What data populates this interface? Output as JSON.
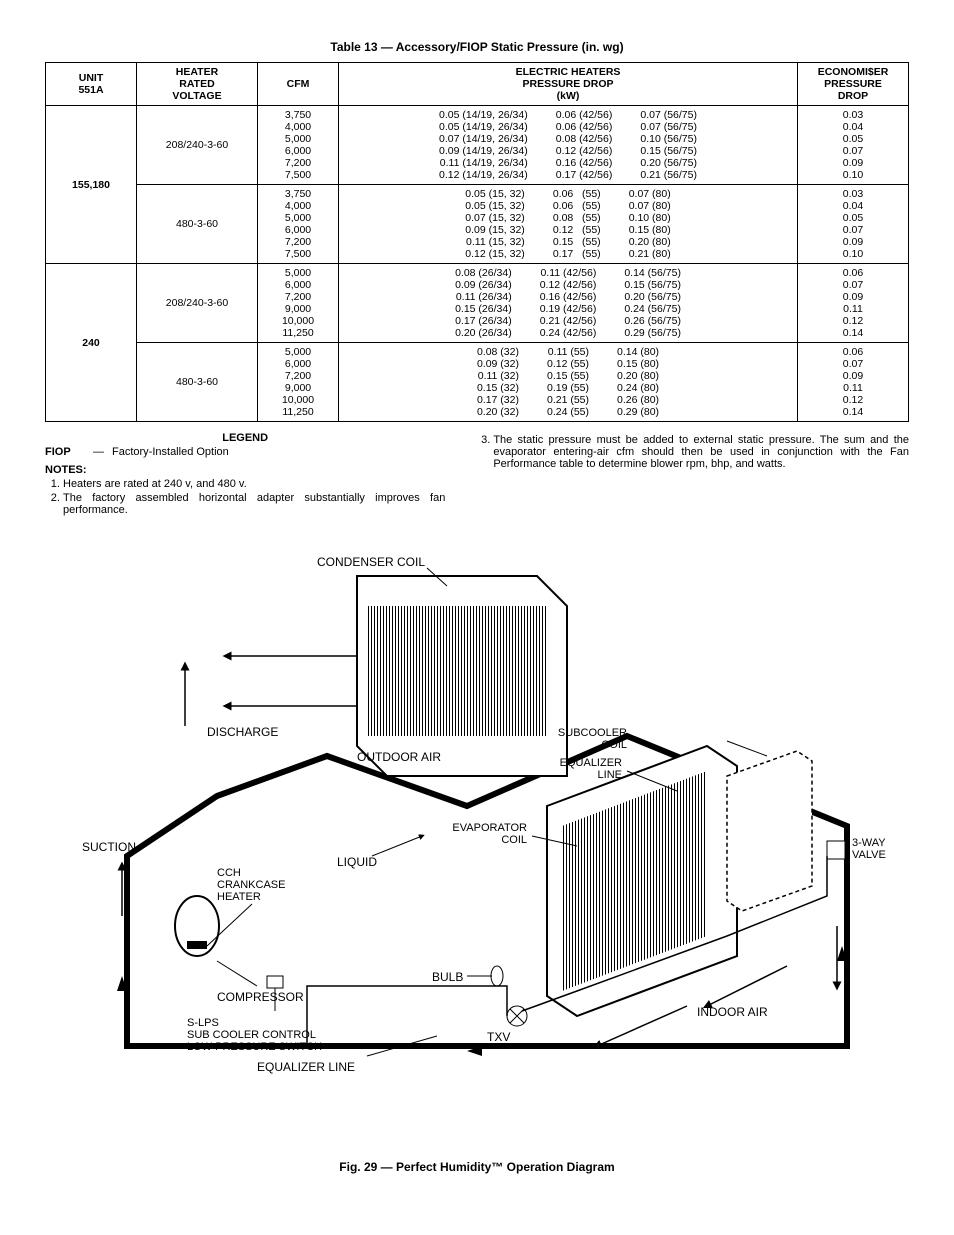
{
  "table_title": "Table 13 — Accessory/FIOP Static Pressure (in. wg)",
  "headers": {
    "unit": "UNIT\n551A",
    "voltage": "HEATER\nRATED\nVOLTAGE",
    "cfm": "CFM",
    "heaters": "ELECTRIC HEATERS\nPRESSURE DROP\n(kW)",
    "econ": "ECONOMI$ER\nPRESSURE\nDROP"
  },
  "rows": [
    {
      "unit": "155,180",
      "groups": [
        {
          "voltage": "208/240-3-60",
          "cfm": "3,750\n4,000\n5,000\n6,000\n7,200\n7,500",
          "heaters_c1": "0.05 (14/19, 26/34)\n0.05 (14/19, 26/34)\n0.07 (14/19, 26/34)\n0.09 (14/19, 26/34)\n0.11 (14/19, 26/34)\n0.12 (14/19, 26/34)",
          "heaters_c2": "0.06 (42/56)\n0.06 (42/56)\n0.08 (42/56)\n0.12 (42/56)\n0.16 (42/56)\n0.17 (42/56)",
          "heaters_c3": "0.07 (56/75)\n0.07 (56/75)\n0.10 (56/75)\n0.15 (56/75)\n0.20 (56/75)\n0.21 (56/75)",
          "econ": "0.03\n0.04\n0.05\n0.07\n0.09\n0.10"
        },
        {
          "voltage": "480-3-60",
          "cfm": "3,750\n4,000\n5,000\n6,000\n7,200\n7,500",
          "heaters_c1": "0.05 (15, 32)\n0.05 (15, 32)\n0.07 (15, 32)\n0.09 (15, 32)\n0.11 (15, 32)\n0.12 (15, 32)",
          "heaters_c2": "0.06   (55)\n0.06   (55)\n0.08   (55)\n0.12   (55)\n0.15   (55)\n0.17   (55)",
          "heaters_c3": "0.07 (80)\n0.07 (80)\n0.10 (80)\n0.15 (80)\n0.20 (80)\n0.21 (80)",
          "econ": "0.03\n0.04\n0.05\n0.07\n0.09\n0.10"
        }
      ]
    },
    {
      "unit": "240",
      "groups": [
        {
          "voltage": "208/240-3-60",
          "cfm": "5,000\n6,000\n7,200\n9,000\n10,000\n11,250",
          "heaters_c1": "0.08 (26/34)\n0.09 (26/34)\n0.11 (26/34)\n0.15 (26/34)\n0.17 (26/34)\n0.20 (26/34)",
          "heaters_c2": "0.11 (42/56)\n0.12 (42/56)\n0.16 (42/56)\n0.19 (42/56)\n0.21 (42/56)\n0.24 (42/56)",
          "heaters_c3": "0.14 (56/75)\n0.15 (56/75)\n0.20 (56/75)\n0.24 (56/75)\n0.26 (56/75)\n0.29 (56/75)",
          "econ": "0.06\n0.07\n0.09\n0.11\n0.12\n0.14"
        },
        {
          "voltage": "480-3-60",
          "cfm": "5,000\n6,000\n7,200\n9,000\n10,000\n11,250",
          "heaters_c1": "0.08 (32)\n0.09 (32)\n0.11 (32)\n0.15 (32)\n0.17 (32)\n0.20 (32)",
          "heaters_c2": "0.11 (55)\n0.12 (55)\n0.15 (55)\n0.19 (55)\n0.21 (55)\n0.24 (55)",
          "heaters_c3": "0.14 (80)\n0.15 (80)\n0.20 (80)\n0.24 (80)\n0.26 (80)\n0.29 (80)",
          "econ": "0.06\n0.07\n0.09\n0.11\n0.12\n0.14"
        }
      ]
    }
  ],
  "legend": {
    "title": "LEGEND",
    "key": "FIOP",
    "sep": "—",
    "value": "Factory-Installed Option"
  },
  "notes_title": "NOTES:",
  "notes": [
    "Heaters are rated at 240 v, and 480 v.",
    "The factory assembled horizontal adapter substantially improves fan performance.",
    "The static pressure must be added to external static pressure. The sum and the evaporator entering-air cfm should then be used in conjunction with the Fan Performance table to determine blower rpm, bhp, and watts."
  ],
  "diagram": {
    "labels": {
      "condenser": "CONDENSER COIL",
      "discharge": "DISCHARGE",
      "outdoor": "OUTDOOR AIR",
      "suction": "SUCTION",
      "cch": "CCH\nCRANKCASE\nHEATER",
      "liquid": "LIQUID",
      "compressor": "COMPRESSOR",
      "slps": "S-LPS\nSUB COOLER CONTROL\nLOW PRESSURE SWITCH",
      "equalizer_line": "EQUALIZER LINE",
      "bulb": "BULB",
      "txv": "TXV",
      "subcooler": "SUBCOOLER\nCOIL",
      "equalizer": "EQUALIZER\nLINE",
      "evaporator": "EVAPORATOR\nCOIL",
      "valve": "3-WAY\nVALVE",
      "indoor": "INDOOR AIR"
    }
  },
  "figure_caption": "Fig. 29 — Perfect Humidity™ Operation Diagram"
}
